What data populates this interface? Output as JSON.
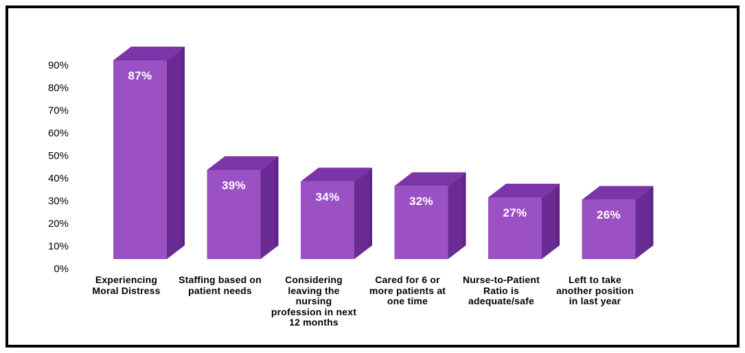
{
  "frame": {
    "background": "#FFFFFF",
    "border_color": "#000000"
  },
  "chart_data": {
    "type": "bar",
    "style": "3d-column",
    "title": "",
    "xlabel": "",
    "ylabel": "",
    "categories": [
      "Experiencing Moral Distress",
      "Staffing based on patient needs",
      "Considering leaving the nursing profession in next 12 months",
      "Cared for 6 or more patients at one time",
      "Nurse-to-Patient Ratio is adequate/safe",
      "Left to take another position in last year"
    ],
    "category_lines": [
      [
        "Experiencing",
        "Moral Distress"
      ],
      [
        "Staffing based on",
        "patient needs"
      ],
      [
        "Considering",
        "leaving the",
        "nursing",
        "profession in next",
        "12 months"
      ],
      [
        "Cared for 6 or",
        "more patients at",
        "one time"
      ],
      [
        "Nurse-to-Patient",
        "Ratio is",
        "adequate/safe"
      ],
      [
        "Left to take",
        "another position",
        "in last year"
      ]
    ],
    "values": [
      87,
      39,
      34,
      32,
      27,
      26
    ],
    "value_labels": [
      "87%",
      "39%",
      "34%",
      "32%",
      "27%",
      "26%"
    ],
    "unit": "%",
    "ylim": [
      0,
      90
    ],
    "y_tick_step": 10,
    "y_tick_labels": [
      "0%",
      "10%",
      "20%",
      "30%",
      "40%",
      "50%",
      "60%",
      "70%",
      "80%",
      "90%"
    ],
    "grid": false,
    "axis_lines": false,
    "legend": "none",
    "value_label_position": "inside-top",
    "colors": {
      "bar_front": "#9B51C4",
      "bar_top": "#7C35A8",
      "bar_side": "#6B2B94",
      "bar_side_edge": "#58217F",
      "value_label": "#FFFFFF",
      "tick_label": "#000000",
      "category_label": "#000000"
    }
  }
}
